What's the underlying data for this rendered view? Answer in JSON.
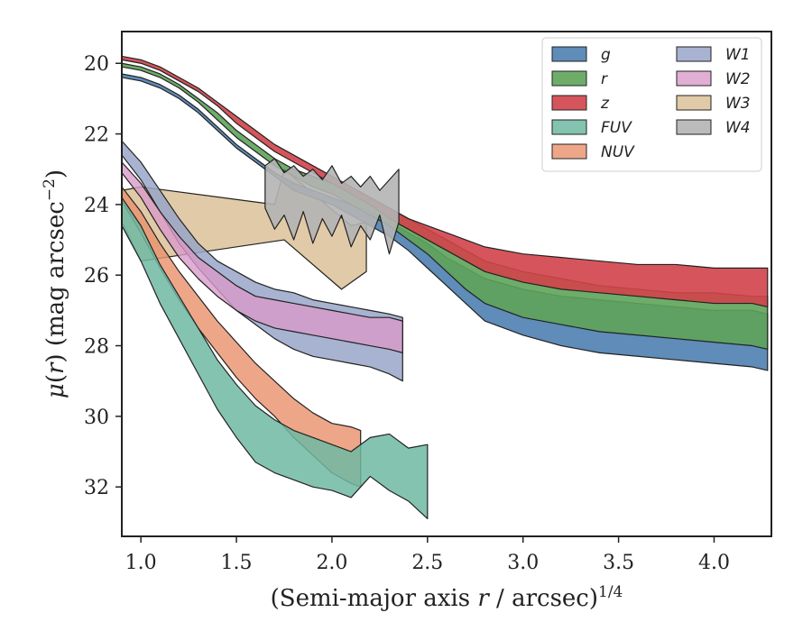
{
  "chart_data": {
    "type": "area",
    "title": "",
    "xlabel_prefix": "(Semi-major axis ",
    "xlabel_var": "r",
    "xlabel_suffix": " / arcsec)",
    "xlabel_sup": "1/4",
    "ylabel_mu": "μ",
    "ylabel_mid": "(",
    "ylabel_var": "r",
    "ylabel_rest": ") (mag arcsec",
    "ylabel_sup": "−2",
    "ylabel_close": ")",
    "xlim": [
      0.9,
      4.3
    ],
    "ylim": [
      33.4,
      19.1
    ],
    "y_inverted": true,
    "x_ticks": [
      1.0,
      1.5,
      2.0,
      2.5,
      3.0,
      3.5,
      4.0
    ],
    "x_tick_labels": [
      "1.0",
      "1.5",
      "2.0",
      "2.5",
      "3.0",
      "3.5",
      "4.0"
    ],
    "y_ticks": [
      20,
      22,
      24,
      26,
      28,
      30,
      32
    ],
    "y_tick_labels": [
      "20",
      "22",
      "24",
      "26",
      "28",
      "30",
      "32"
    ],
    "grid": false,
    "legend_position": "top-right",
    "legend_columns": 2,
    "series": [
      {
        "name": "W3",
        "color": "#d9bb8f",
        "opacity": 0.78,
        "x": [
          0.9,
          1.0,
          1.7,
          1.75,
          2.1,
          2.18,
          2.18,
          2.05,
          1.75,
          1.0,
          0.9
        ],
        "y1": [
          23.6,
          23.5,
          24.0,
          23.0,
          24.6,
          24.5,
          25.9,
          26.4,
          25.0,
          25.6,
          24.5
        ],
        "y2": null
      },
      {
        "name": "NUV",
        "color": "#e8916a",
        "opacity": 0.8,
        "x": [
          0.9,
          1.0,
          1.1,
          1.2,
          1.3,
          1.4,
          1.5,
          1.6,
          1.7,
          1.8,
          1.9,
          2.0,
          2.1,
          2.15
        ],
        "y1": [
          23.5,
          24.2,
          25.1,
          25.9,
          26.6,
          27.3,
          27.9,
          28.5,
          29.0,
          29.5,
          29.9,
          30.2,
          30.3,
          30.4
        ],
        "y2": [
          23.9,
          24.8,
          25.8,
          26.7,
          27.5,
          28.2,
          28.9,
          29.5,
          30.0,
          30.6,
          31.1,
          31.6,
          31.9,
          32.0
        ]
      },
      {
        "name": "FUV",
        "color": "#6fb8a2",
        "opacity": 0.85,
        "x": [
          0.9,
          1.0,
          1.1,
          1.2,
          1.3,
          1.4,
          1.5,
          1.6,
          1.7,
          1.8,
          1.9,
          2.0,
          2.1,
          2.2,
          2.3,
          2.4,
          2.5
        ],
        "y1": [
          23.8,
          24.6,
          25.7,
          26.6,
          27.5,
          28.4,
          29.1,
          29.7,
          30.1,
          30.4,
          30.6,
          30.8,
          31.0,
          30.6,
          30.5,
          30.9,
          30.8
        ],
        "y2": [
          24.6,
          25.6,
          26.8,
          27.8,
          28.8,
          29.8,
          30.6,
          31.3,
          31.6,
          31.8,
          32.0,
          32.1,
          32.3,
          31.7,
          32.1,
          32.4,
          32.9
        ]
      },
      {
        "name": "W1",
        "color": "#98a6c8",
        "opacity": 0.85,
        "x": [
          0.9,
          1.0,
          1.1,
          1.2,
          1.3,
          1.4,
          1.5,
          1.6,
          1.7,
          1.8,
          1.9,
          2.0,
          2.1,
          2.2,
          2.3,
          2.37
        ],
        "y1": [
          22.2,
          22.8,
          23.6,
          24.4,
          25.1,
          25.6,
          25.9,
          26.2,
          26.4,
          26.5,
          26.7,
          26.8,
          26.9,
          27.0,
          27.1,
          27.2
        ],
        "y2": [
          22.6,
          23.3,
          24.2,
          25.1,
          25.8,
          26.4,
          27.0,
          27.4,
          27.8,
          28.1,
          28.3,
          28.4,
          28.5,
          28.6,
          28.8,
          29.0
        ]
      },
      {
        "name": "W2",
        "color": "#d99ac9",
        "opacity": 0.8,
        "x": [
          0.9,
          1.0,
          1.1,
          1.2,
          1.3,
          1.4,
          1.5,
          1.6,
          1.7,
          1.8,
          1.9,
          2.0,
          2.1,
          2.2,
          2.3,
          2.37
        ],
        "y1": [
          22.8,
          23.4,
          24.2,
          24.9,
          25.5,
          25.9,
          26.3,
          26.6,
          26.7,
          26.8,
          26.9,
          27.0,
          27.1,
          27.2,
          27.2,
          27.3
        ],
        "y2": [
          23.1,
          23.8,
          24.7,
          25.5,
          26.1,
          26.6,
          27.0,
          27.3,
          27.5,
          27.6,
          27.7,
          27.8,
          27.9,
          28.0,
          28.1,
          28.2
        ]
      },
      {
        "name": "g",
        "color": "#4e7fb0",
        "opacity": 0.9,
        "x": [
          0.9,
          1.0,
          1.1,
          1.2,
          1.3,
          1.4,
          1.5,
          1.6,
          1.7,
          1.8,
          1.9,
          2.0,
          2.1,
          2.2,
          2.3,
          2.4,
          2.5,
          2.6,
          2.7,
          2.8,
          3.0,
          3.2,
          3.4,
          3.6,
          3.8,
          4.0,
          4.2,
          4.28
        ],
        "y1": [
          20.3,
          20.4,
          20.6,
          20.9,
          21.3,
          21.8,
          22.3,
          22.7,
          23.1,
          23.4,
          23.6,
          23.8,
          24.0,
          24.2,
          24.5,
          24.8,
          25.1,
          25.5,
          25.8,
          26.1,
          26.4,
          26.6,
          26.7,
          26.8,
          26.9,
          27.0,
          27.0,
          27.1
        ],
        "y2": [
          20.4,
          20.5,
          20.7,
          21.0,
          21.4,
          21.9,
          22.4,
          22.8,
          23.2,
          23.6,
          23.8,
          24.0,
          24.3,
          24.6,
          24.9,
          25.3,
          25.8,
          26.3,
          26.8,
          27.3,
          27.7,
          28.0,
          28.2,
          28.3,
          28.4,
          28.5,
          28.6,
          28.7
        ]
      },
      {
        "name": "r",
        "color": "#5ea35a",
        "opacity": 0.9,
        "x": [
          0.9,
          1.0,
          1.1,
          1.2,
          1.3,
          1.4,
          1.5,
          1.6,
          1.7,
          1.8,
          1.9,
          2.0,
          2.1,
          2.2,
          2.3,
          2.4,
          2.5,
          2.6,
          2.7,
          2.8,
          3.0,
          3.2,
          3.4,
          3.6,
          3.8,
          4.0,
          4.2,
          4.28
        ],
        "y1": [
          20.0,
          20.1,
          20.3,
          20.6,
          21.0,
          21.4,
          21.9,
          22.3,
          22.7,
          23.0,
          23.2,
          23.4,
          23.6,
          23.8,
          24.1,
          24.4,
          24.7,
          25.0,
          25.3,
          25.6,
          25.9,
          26.1,
          26.3,
          26.4,
          26.5,
          26.5,
          26.6,
          26.6
        ],
        "y2": [
          20.1,
          20.2,
          20.4,
          20.7,
          21.1,
          21.6,
          22.1,
          22.5,
          22.9,
          23.2,
          23.5,
          23.7,
          24.0,
          24.3,
          24.6,
          25.0,
          25.4,
          25.9,
          26.4,
          26.8,
          27.2,
          27.4,
          27.6,
          27.7,
          27.8,
          27.9,
          28.0,
          28.1
        ]
      },
      {
        "name": "z",
        "color": "#d1434a",
        "opacity": 0.9,
        "x": [
          0.9,
          1.0,
          1.1,
          1.2,
          1.3,
          1.4,
          1.5,
          1.6,
          1.7,
          1.8,
          1.9,
          2.0,
          2.1,
          2.2,
          2.3,
          2.4,
          2.5,
          2.6,
          2.7,
          2.8,
          3.0,
          3.2,
          3.4,
          3.6,
          3.8,
          4.0,
          4.2,
          4.28
        ],
        "y1": [
          19.8,
          19.9,
          20.1,
          20.4,
          20.7,
          21.1,
          21.5,
          21.9,
          22.3,
          22.6,
          22.9,
          23.2,
          23.5,
          23.8,
          24.1,
          24.4,
          24.6,
          24.8,
          25.0,
          25.2,
          25.4,
          25.5,
          25.6,
          25.7,
          25.7,
          25.8,
          25.8,
          25.8
        ],
        "y2": [
          19.9,
          20.0,
          20.2,
          20.5,
          20.8,
          21.2,
          21.7,
          22.1,
          22.5,
          22.8,
          23.1,
          23.4,
          23.7,
          24.0,
          24.4,
          24.7,
          25.0,
          25.3,
          25.6,
          25.9,
          26.2,
          26.4,
          26.5,
          26.6,
          26.7,
          26.8,
          26.8,
          26.9
        ]
      },
      {
        "name": "W4",
        "color": "#b4b4b4",
        "opacity": 0.9,
        "x": [
          1.65,
          1.7,
          1.75,
          1.8,
          1.85,
          1.9,
          1.95,
          2.0,
          2.05,
          2.1,
          2.15,
          2.2,
          2.25,
          2.3,
          2.35
        ],
        "y1": [
          22.9,
          22.7,
          23.1,
          22.9,
          23.2,
          23.0,
          23.3,
          22.9,
          23.4,
          23.2,
          23.5,
          23.2,
          23.6,
          23.3,
          23.0
        ],
        "y2": [
          24.1,
          24.7,
          24.3,
          25.0,
          24.2,
          25.1,
          24.4,
          24.9,
          24.3,
          25.2,
          24.6,
          25.0,
          24.3,
          25.4,
          24.5
        ]
      }
    ],
    "legend_order": [
      "g",
      "r",
      "z",
      "FUV",
      "NUV",
      "W1",
      "W2",
      "W3",
      "W4"
    ]
  }
}
